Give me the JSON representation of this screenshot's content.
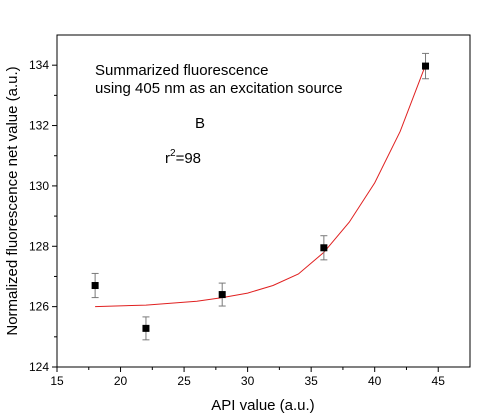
{
  "chart_data": {
    "type": "scatter",
    "xlabel": "API value (a.u.)",
    "ylabel": "Normalized fluorescence net value (a.u.)",
    "annotations": {
      "line1": "Summarized fluorescence",
      "line2": "using 405 nm as an excitation source",
      "panel": "B",
      "r2_base": "r",
      "r2_sup": "2",
      "r2_value": "=98"
    },
    "xlim": [
      15,
      47.5
    ],
    "ylim": [
      124,
      135
    ],
    "xticks": [
      15,
      20,
      25,
      30,
      35,
      40,
      45
    ],
    "yticks": [
      124,
      126,
      128,
      130,
      132,
      134
    ],
    "grid": false,
    "series": [
      {
        "points": [
          {
            "x": 18,
            "y": 126.7,
            "err": 0.4
          },
          {
            "x": 22,
            "y": 125.28,
            "err": 0.38
          },
          {
            "x": 28,
            "y": 126.4,
            "err": 0.38
          },
          {
            "x": 36,
            "y": 127.95,
            "err": 0.4
          },
          {
            "x": 44,
            "y": 133.97,
            "err": 0.42
          }
        ],
        "marker_color": "#000000"
      }
    ],
    "fit": {
      "type": "exponential",
      "x_range": [
        18,
        44
      ],
      "curve": [
        {
          "x": 18,
          "y": 126.0
        },
        {
          "x": 22,
          "y": 126.05
        },
        {
          "x": 26,
          "y": 126.18
        },
        {
          "x": 28,
          "y": 126.3
        },
        {
          "x": 30,
          "y": 126.45
        },
        {
          "x": 32,
          "y": 126.7
        },
        {
          "x": 34,
          "y": 127.08
        },
        {
          "x": 36,
          "y": 127.8
        },
        {
          "x": 38,
          "y": 128.8
        },
        {
          "x": 40,
          "y": 130.1
        },
        {
          "x": 42,
          "y": 131.8
        },
        {
          "x": 44,
          "y": 134.0
        }
      ],
      "color": "#e02020"
    },
    "errorbar_color": "#7a7a7a"
  }
}
